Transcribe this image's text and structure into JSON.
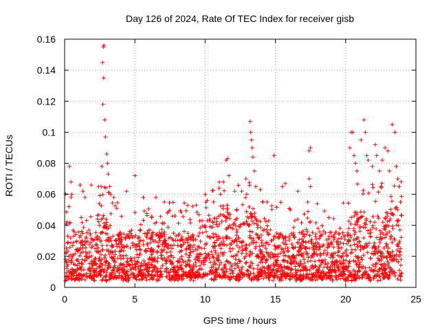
{
  "chart_data": {
    "type": "scatter",
    "title": "Day 126 of 2024, Rate Of TEC Index for receiver gisb",
    "xlabel": "GPS time / hours",
    "ylabel": "ROTI / TECUs",
    "xlim": [
      0,
      25
    ],
    "ylim": [
      0,
      0.16
    ],
    "xticks": [
      0,
      5,
      10,
      15,
      20,
      25
    ],
    "yticks": [
      0,
      0.02,
      0.04,
      0.06,
      0.08,
      0.1,
      0.12,
      0.14,
      0.16
    ],
    "grid": true,
    "marker": "+",
    "color": "#ff0000",
    "series": [
      {
        "name": "ROTI",
        "baseline_range": [
          0.004,
          0.04
        ],
        "points": [
          [
            0.3,
            0.052
          ],
          [
            0.35,
            0.078
          ],
          [
            0.45,
            0.068
          ],
          [
            0.5,
            0.06
          ],
          [
            1.1,
            0.066
          ],
          [
            1.3,
            0.062
          ],
          [
            1.45,
            0.058
          ],
          [
            1.9,
            0.066
          ],
          [
            2.6,
            0.065
          ],
          [
            2.65,
            0.078
          ],
          [
            2.7,
            0.145
          ],
          [
            2.75,
            0.155
          ],
          [
            2.8,
            0.156
          ],
          [
            2.78,
            0.135
          ],
          [
            2.72,
            0.118
          ],
          [
            2.85,
            0.108
          ],
          [
            2.9,
            0.097
          ],
          [
            3.0,
            0.086
          ],
          [
            3.05,
            0.08
          ],
          [
            3.1,
            0.073
          ],
          [
            3.2,
            0.065
          ],
          [
            3.5,
            0.058
          ],
          [
            4.4,
            0.062
          ],
          [
            5.0,
            0.072
          ],
          [
            5.6,
            0.058
          ],
          [
            6.5,
            0.058
          ],
          [
            7.1,
            0.055
          ],
          [
            10.0,
            0.06
          ],
          [
            10.6,
            0.055
          ],
          [
            11.1,
            0.06
          ],
          [
            11.3,
            0.068
          ],
          [
            11.5,
            0.082
          ],
          [
            11.6,
            0.083
          ],
          [
            11.7,
            0.072
          ],
          [
            12.1,
            0.062
          ],
          [
            12.6,
            0.062
          ],
          [
            12.9,
            0.07
          ],
          [
            13.2,
            0.107
          ],
          [
            13.25,
            0.1
          ],
          [
            13.3,
            0.095
          ],
          [
            13.35,
            0.09
          ],
          [
            13.4,
            0.084
          ],
          [
            13.5,
            0.075
          ],
          [
            13.6,
            0.065
          ],
          [
            14.1,
            0.055
          ],
          [
            14.4,
            0.055
          ],
          [
            14.9,
            0.085
          ],
          [
            15.5,
            0.065
          ],
          [
            15.7,
            0.067
          ],
          [
            16.6,
            0.062
          ],
          [
            17.4,
            0.088
          ],
          [
            17.5,
            0.09
          ],
          [
            17.4,
            0.07
          ],
          [
            17.5,
            0.065
          ],
          [
            17.3,
            0.055
          ],
          [
            18.8,
            0.045
          ],
          [
            19.6,
            0.038
          ],
          [
            20.3,
            0.09
          ],
          [
            20.4,
            0.1
          ],
          [
            20.5,
            0.1
          ],
          [
            20.6,
            0.085
          ],
          [
            20.7,
            0.08
          ],
          [
            20.8,
            0.075
          ],
          [
            21.1,
            0.095
          ],
          [
            21.3,
            0.108
          ],
          [
            21.4,
            0.1
          ],
          [
            21.5,
            0.085
          ],
          [
            21.6,
            0.082
          ],
          [
            21.9,
            0.078
          ],
          [
            22.1,
            0.092
          ],
          [
            22.2,
            0.085
          ],
          [
            22.4,
            0.075
          ],
          [
            22.6,
            0.082
          ],
          [
            22.8,
            0.09
          ],
          [
            23.0,
            0.088
          ],
          [
            23.1,
            0.075
          ],
          [
            23.3,
            0.105
          ],
          [
            23.5,
            0.1
          ],
          [
            23.6,
            0.078
          ],
          [
            23.7,
            0.07
          ],
          [
            23.8,
            0.065
          ],
          [
            23.9,
            0.055
          ]
        ]
      }
    ]
  }
}
